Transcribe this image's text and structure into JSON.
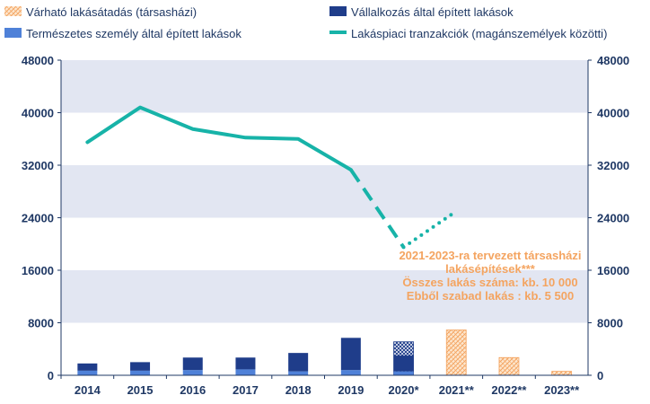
{
  "chart_data": {
    "type": "bar",
    "categories": [
      "2014",
      "2015",
      "2016",
      "2017",
      "2018",
      "2019",
      "2020*",
      "2021**",
      "2022**",
      "2023**"
    ],
    "ylim": [
      0,
      48000
    ],
    "yticks": [
      0,
      8000,
      16000,
      24000,
      32000,
      40000,
      48000
    ],
    "yticks_right": [
      0,
      8000,
      16000,
      24000,
      32000,
      40000,
      48000
    ],
    "grid": "horizontal bands",
    "legend_position": "top",
    "series": [
      {
        "name": "Természetes személy által épített lakások",
        "kind": "stacked-bar",
        "color": "#4f81d8",
        "values": [
          700,
          700,
          800,
          900,
          600,
          800,
          600,
          null,
          null,
          null
        ]
      },
      {
        "name": "Vállalkozás által épített lakások",
        "kind": "stacked-bar",
        "color": "#1f3d8a",
        "values": [
          1100,
          1300,
          1900,
          1800,
          2800,
          4900,
          2400,
          null,
          null,
          null
        ]
      },
      {
        "name": "Várható lakásátadás (társasházi)",
        "kind": "bar-hatched-orange",
        "color": "#f4a460",
        "values": [
          null,
          null,
          null,
          null,
          null,
          null,
          null,
          6900,
          2700,
          600
        ]
      },
      {
        "name": "Lakáspiaci tranzakciók (magánszemélyek közötti)",
        "kind": "line",
        "color": "#17b3a8",
        "values": [
          35500,
          40800,
          37500,
          36200,
          36000,
          31300,
          19500,
          25000,
          null,
          null
        ],
        "solid_through": "2019",
        "dashed_segment": [
          "2019",
          "2020*"
        ],
        "dotted_segment": [
          "2020*",
          "2021**"
        ]
      }
    ],
    "extra_bar_2020": {
      "value_total": 5100,
      "pattern": "hatched-dark"
    },
    "annotation": [
      "2021-2023-ra tervezett társasházi",
      "lakásépítések***",
      "Összes lakás száma: kb. 10 000",
      "Ebből szabad lakás : kb. 5 500"
    ]
  },
  "legend": {
    "items": [
      {
        "label": "Várható lakásátadás (társasházi)",
        "swatch": "hatched-orange"
      },
      {
        "label": "Vállalkozás által épített lakások",
        "swatch": "#1f3d8a"
      },
      {
        "label": "Természetes személy által épített lakások",
        "swatch": "#4f81d8"
      },
      {
        "label": "Lakáspiaci tranzakciók (magánszemélyek közötti)",
        "swatch": "line-#17b3a8"
      }
    ]
  }
}
